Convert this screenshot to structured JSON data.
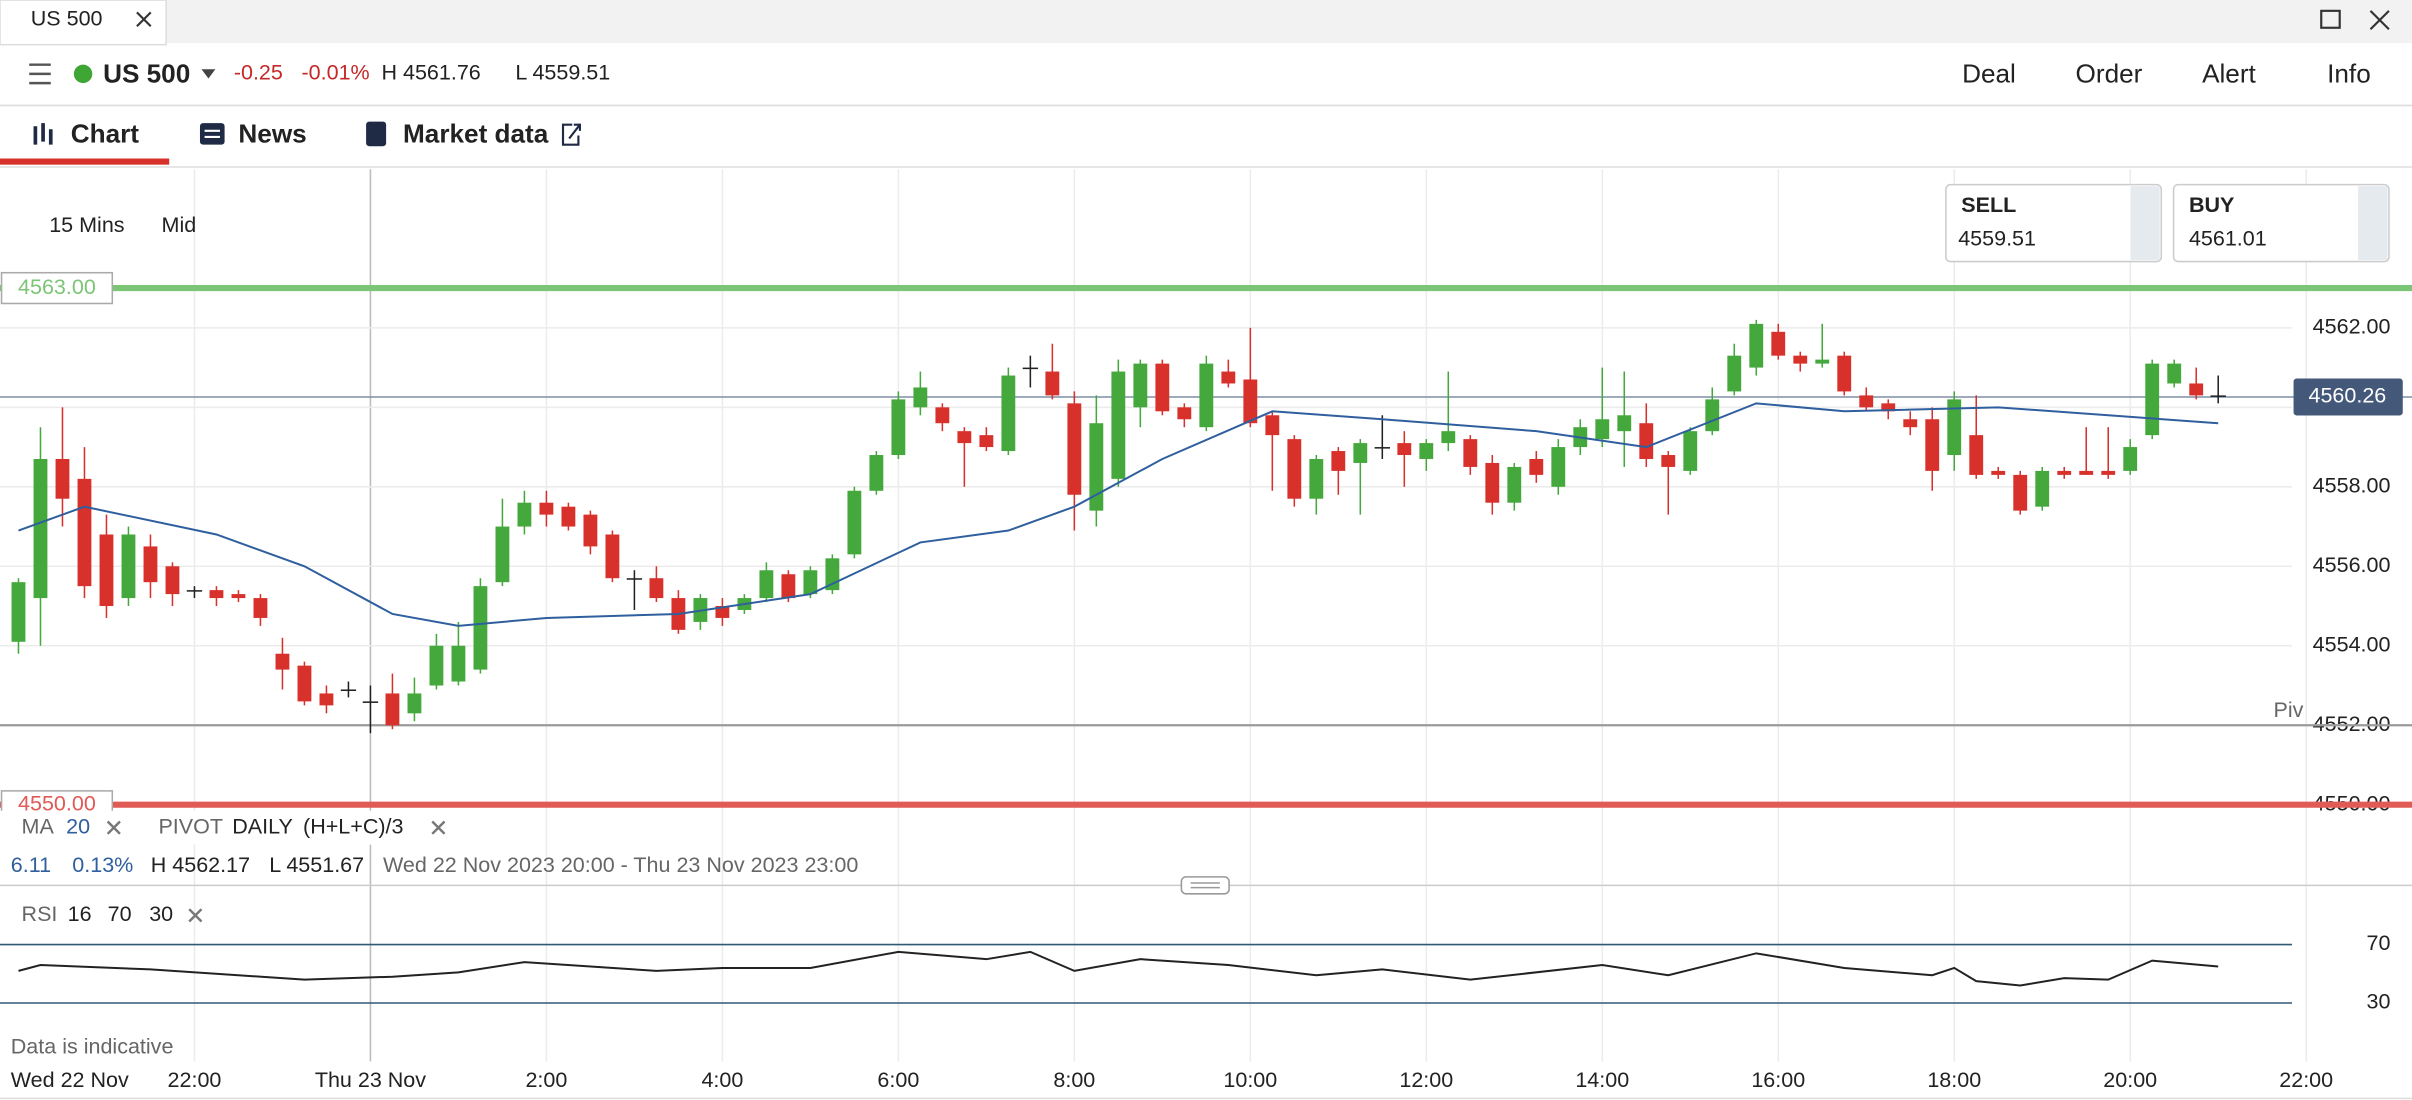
{
  "window": {
    "tab": "US 500"
  },
  "header": {
    "instrument": "US 500",
    "change": "-0.25",
    "change_pct": "-0.01%",
    "high": "H 4561.76",
    "low": "L 4559.51",
    "actions": [
      "Deal",
      "Order",
      "Alert",
      "Info"
    ]
  },
  "tabs": [
    "Chart",
    "News",
    "Market data"
  ],
  "chart_settings": {
    "interval": "15 Mins",
    "price": "Mid"
  },
  "quote": {
    "sell_label": "SELL",
    "sell": "4559.51",
    "buy_label": "BUY",
    "buy": "4561.01"
  },
  "indicators": {
    "ma": "MA",
    "ma_period": "20",
    "pivot": "PIVOT",
    "pivot_period": "DAILY",
    "pivot_formula": "(H+L+C)/3",
    "rsi": "RSI",
    "rsi_params": [
      "16",
      "70",
      "30"
    ]
  },
  "stats": {
    "change": "6.11",
    "change_pct": "0.13%",
    "high": "H 4562.17",
    "low": "L 4551.67",
    "range": "Wed 22 Nov 2023 20:00 - Thu 23 Nov 2023 23:00"
  },
  "disclaimer": "Data is indicative",
  "chart_data": [
    {
      "type": "candlestick",
      "up_color": "#45a83c",
      "down_color": "#d8312c",
      "doji_color": "#222222",
      "xlim": [
        -0.84,
        108.81
      ],
      "ylim": [
        4549.81,
        4565.99
      ],
      "x_start_label": "Wed 22 Nov",
      "xticks": [
        {
          "value": 8,
          "label": "22:00"
        },
        {
          "value": 16,
          "label": "Thu 23 Nov"
        },
        {
          "value": 24,
          "label": "2:00"
        },
        {
          "value": 32,
          "label": "4:00"
        },
        {
          "value": 40,
          "label": "6:00"
        },
        {
          "value": 48,
          "label": "8:00"
        },
        {
          "value": 56,
          "label": "10:00"
        },
        {
          "value": 64,
          "label": "12:00"
        },
        {
          "value": 72,
          "label": "14:00"
        },
        {
          "value": 80,
          "label": "16:00"
        },
        {
          "value": 88,
          "label": "18:00"
        },
        {
          "value": 96,
          "label": "20:00"
        },
        {
          "value": 104,
          "label": "22:00"
        }
      ],
      "yticks": [
        {
          "value": 4550,
          "label": "4550.00"
        },
        {
          "value": 4552,
          "label": "4552.00"
        },
        {
          "value": 4554,
          "label": "4554.00"
        },
        {
          "value": 4556,
          "label": "4556.00"
        },
        {
          "value": 4558,
          "label": "4558.00"
        },
        {
          "value": 4560,
          "label": "4560.00"
        },
        {
          "value": 4562,
          "label": "4562.00"
        }
      ],
      "grid": true,
      "high_line": {
        "value": 4563,
        "label": "4563.00",
        "color": "#7cc576"
      },
      "low_line": {
        "value": 4550,
        "label": "4550.00",
        "color": "#e05b55"
      },
      "pivot_line": {
        "value": 4552,
        "label": "Piv",
        "color": "#9a9a9a"
      },
      "current_line": {
        "value": 4560.26,
        "label": "4560.26",
        "color": "#7d8fa6"
      },
      "candles": [
        [
          4554.1,
          4555.7,
          4553.8,
          4555.6
        ],
        [
          4555.2,
          4559.5,
          4554.0,
          4558.7
        ],
        [
          4558.7,
          4560.0,
          4557.0,
          4557.7
        ],
        [
          4558.2,
          4559.0,
          4555.2,
          4555.5
        ],
        [
          4556.8,
          4557.3,
          4554.7,
          4555.0
        ],
        [
          4555.2,
          4557.0,
          4555.0,
          4556.8
        ],
        [
          4556.5,
          4556.8,
          4555.2,
          4555.6
        ],
        [
          4556.0,
          4556.1,
          4555.0,
          4555.3
        ],
        [
          4555.4,
          4555.5,
          4555.2,
          4555.4
        ],
        [
          4555.4,
          4555.5,
          4555.0,
          4555.2
        ],
        [
          4555.3,
          4555.4,
          4555.1,
          4555.2
        ],
        [
          4555.2,
          4555.3,
          4554.5,
          4554.7
        ],
        [
          4553.8,
          4554.2,
          4552.9,
          4553.4
        ],
        [
          4553.5,
          4553.6,
          4552.5,
          4552.6
        ],
        [
          4552.8,
          4553.0,
          4552.3,
          4552.5
        ],
        [
          4552.9,
          4553.1,
          4552.7,
          4552.9
        ],
        [
          4552.6,
          4553.0,
          4551.8,
          4552.6
        ],
        [
          4552.8,
          4553.3,
          4551.9,
          4552.0
        ],
        [
          4552.3,
          4553.2,
          4552.1,
          4552.8
        ],
        [
          4553.0,
          4554.3,
          4552.9,
          4554.0
        ],
        [
          4553.1,
          4554.6,
          4553.0,
          4554.0
        ],
        [
          4553.4,
          4555.7,
          4553.3,
          4555.5
        ],
        [
          4555.6,
          4557.7,
          4555.5,
          4557.0
        ],
        [
          4557.0,
          4557.9,
          4556.8,
          4557.6
        ],
        [
          4557.6,
          4557.9,
          4557.0,
          4557.3
        ],
        [
          4557.5,
          4557.6,
          4556.9,
          4557.0
        ],
        [
          4557.3,
          4557.4,
          4556.3,
          4556.5
        ],
        [
          4556.8,
          4556.9,
          4555.6,
          4555.7
        ],
        [
          4555.7,
          4555.9,
          4554.9,
          4555.7
        ],
        [
          4555.7,
          4556.0,
          4555.1,
          4555.2
        ],
        [
          4555.2,
          4555.4,
          4554.3,
          4554.4
        ],
        [
          4554.6,
          4555.3,
          4554.4,
          4555.2
        ],
        [
          4555.0,
          4555.2,
          4554.5,
          4554.7
        ],
        [
          4554.9,
          4555.3,
          4554.8,
          4555.2
        ],
        [
          4555.2,
          4556.1,
          4555.1,
          4555.9
        ],
        [
          4555.8,
          4555.9,
          4555.1,
          4555.2
        ],
        [
          4555.3,
          4556.0,
          4555.2,
          4555.9
        ],
        [
          4555.4,
          4556.3,
          4555.3,
          4556.2
        ],
        [
          4556.3,
          4558.0,
          4556.2,
          4557.9
        ],
        [
          4557.9,
          4558.9,
          4557.8,
          4558.8
        ],
        [
          4558.8,
          4560.4,
          4558.7,
          4560.2
        ],
        [
          4560.0,
          4560.9,
          4559.8,
          4560.5
        ],
        [
          4560.0,
          4560.1,
          4559.4,
          4559.6
        ],
        [
          4559.4,
          4559.5,
          4558.0,
          4559.1
        ],
        [
          4559.3,
          4559.5,
          4558.9,
          4559.0
        ],
        [
          4558.9,
          4561.0,
          4558.8,
          4560.8
        ],
        [
          4561.0,
          4561.3,
          4560.5,
          4561.0
        ],
        [
          4560.9,
          4561.6,
          4560.2,
          4560.3
        ],
        [
          4560.1,
          4560.4,
          4556.9,
          4557.8
        ],
        [
          4557.4,
          4560.3,
          4557.0,
          4559.6
        ],
        [
          4558.2,
          4561.2,
          4558.0,
          4560.9
        ],
        [
          4560.0,
          4561.2,
          4559.5,
          4561.1
        ],
        [
          4561.1,
          4561.2,
          4559.8,
          4559.9
        ],
        [
          4560.0,
          4560.1,
          4559.5,
          4559.7
        ],
        [
          4559.5,
          4561.3,
          4559.4,
          4561.1
        ],
        [
          4560.9,
          4561.2,
          4560.5,
          4560.6
        ],
        [
          4560.7,
          4562.0,
          4559.5,
          4559.6
        ],
        [
          4559.8,
          4559.9,
          4557.9,
          4559.3
        ],
        [
          4559.2,
          4559.3,
          4557.5,
          4557.7
        ],
        [
          4557.7,
          4558.8,
          4557.3,
          4558.7
        ],
        [
          4558.9,
          4559.0,
          4557.8,
          4558.4
        ],
        [
          4558.6,
          4559.2,
          4557.3,
          4559.1
        ],
        [
          4559.0,
          4559.8,
          4558.7,
          4559.0
        ],
        [
          4559.1,
          4559.4,
          4558.0,
          4558.8
        ],
        [
          4558.7,
          4559.2,
          4558.4,
          4559.1
        ],
        [
          4559.1,
          4560.9,
          4558.9,
          4559.4
        ],
        [
          4559.2,
          4559.3,
          4558.3,
          4558.5
        ],
        [
          4558.6,
          4558.8,
          4557.3,
          4557.6
        ],
        [
          4557.6,
          4558.6,
          4557.4,
          4558.5
        ],
        [
          4558.7,
          4558.9,
          4558.1,
          4558.3
        ],
        [
          4558.0,
          4559.2,
          4557.8,
          4559.0
        ],
        [
          4559.0,
          4559.7,
          4558.8,
          4559.5
        ],
        [
          4559.2,
          4561.0,
          4559.0,
          4559.7
        ],
        [
          4559.4,
          4560.9,
          4558.5,
          4559.8
        ],
        [
          4559.6,
          4560.1,
          4558.5,
          4558.7
        ],
        [
          4558.8,
          4558.9,
          4557.3,
          4558.5
        ],
        [
          4558.4,
          4559.5,
          4558.3,
          4559.4
        ],
        [
          4559.4,
          4560.5,
          4559.3,
          4560.2
        ],
        [
          4560.4,
          4561.6,
          4560.3,
          4561.3
        ],
        [
          4561.0,
          4562.2,
          4560.8,
          4562.1
        ],
        [
          4561.9,
          4562.1,
          4561.2,
          4561.3
        ],
        [
          4561.3,
          4561.4,
          4560.9,
          4561.1
        ],
        [
          4561.1,
          4562.1,
          4561.0,
          4561.2
        ],
        [
          4561.3,
          4561.4,
          4560.3,
          4560.4
        ],
        [
          4560.3,
          4560.5,
          4559.9,
          4560.0
        ],
        [
          4560.1,
          4560.2,
          4559.7,
          4559.9
        ],
        [
          4559.7,
          4559.9,
          4559.3,
          4559.5
        ],
        [
          4559.7,
          4560.0,
          4557.9,
          4558.4
        ],
        [
          4558.8,
          4560.4,
          4558.4,
          4560.2
        ],
        [
          4559.3,
          4560.3,
          4558.2,
          4558.3
        ],
        [
          4558.4,
          4558.5,
          4558.2,
          4558.3
        ],
        [
          4558.3,
          4558.4,
          4557.3,
          4557.4
        ],
        [
          4557.5,
          4558.5,
          4557.4,
          4558.4
        ],
        [
          4558.4,
          4558.5,
          4558.2,
          4558.3
        ],
        [
          4558.4,
          4559.5,
          4558.3,
          4558.3
        ],
        [
          4558.4,
          4559.5,
          4558.2,
          4558.3
        ],
        [
          4558.4,
          4559.2,
          4558.3,
          4559.0
        ],
        [
          4559.3,
          4561.2,
          4559.2,
          4561.1
        ],
        [
          4560.6,
          4561.2,
          4560.5,
          4561.1
        ],
        [
          4560.6,
          4561.0,
          4560.2,
          4560.3
        ],
        [
          4560.3,
          4560.8,
          4560.1,
          4560.3
        ]
      ],
      "series": [
        {
          "color": "#2f5f9e",
          "x": [
            0,
            3,
            9,
            13,
            17,
            20,
            24,
            30,
            36,
            41,
            45,
            48,
            52,
            57,
            62,
            69,
            74,
            79,
            83,
            90,
            95,
            100
          ],
          "values": [
            4556.9,
            4557.5,
            4556.8,
            4556.0,
            4554.8,
            4554.5,
            4554.7,
            4554.8,
            4555.3,
            4556.6,
            4556.9,
            4557.5,
            4558.7,
            4559.9,
            4559.7,
            4559.4,
            4559.0,
            4560.1,
            4559.9,
            4560.0,
            4559.8,
            4559.6
          ]
        }
      ]
    },
    {
      "type": "line",
      "xlim": [
        -0.84,
        108.81
      ],
      "ylim": [
        0,
        100
      ],
      "yticks": [
        30,
        70
      ],
      "level_color": "#2e5a78",
      "series": [
        {
          "color": "#222222",
          "x": [
            0,
            1,
            6,
            13,
            17,
            20,
            23,
            29,
            32,
            36,
            40,
            44,
            46,
            48,
            51,
            55,
            59,
            62,
            66,
            72,
            75,
            79,
            83,
            87,
            88,
            89,
            91,
            93,
            95,
            97,
            100
          ],
          "values": [
            52,
            56,
            53,
            46,
            48,
            51,
            58,
            52,
            54,
            54,
            65,
            60,
            65,
            52,
            60,
            56,
            49,
            53,
            46,
            56,
            49,
            64,
            54,
            49,
            54,
            45,
            42,
            47,
            46,
            59,
            55
          ]
        }
      ]
    }
  ]
}
